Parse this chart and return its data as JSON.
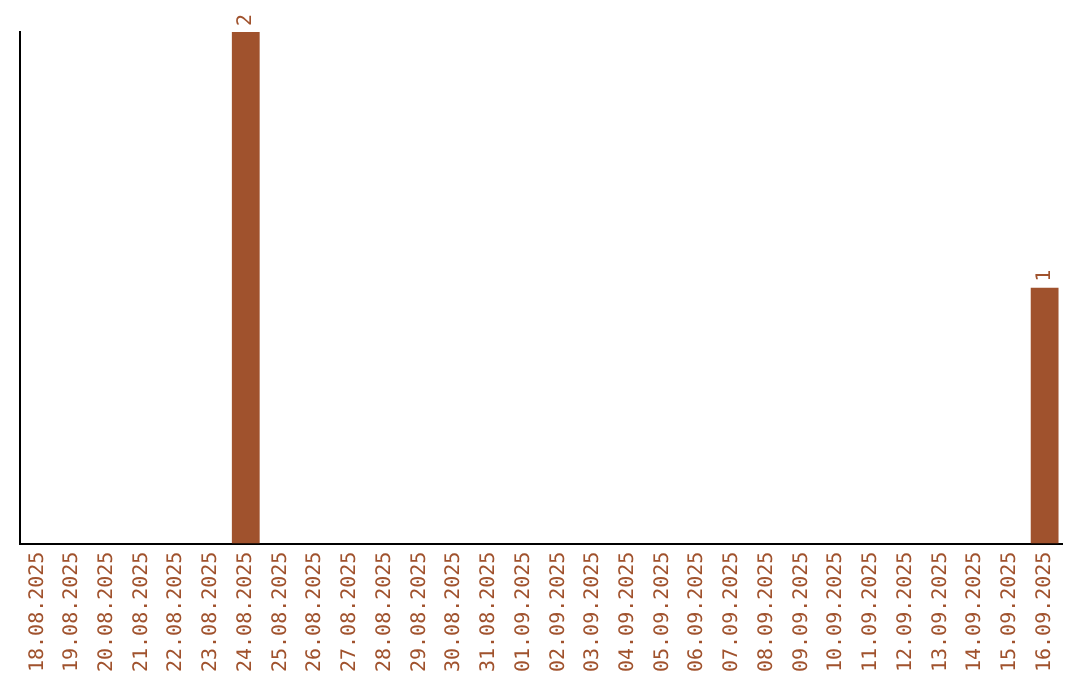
{
  "chart_data": {
    "type": "bar",
    "categories": [
      "18.08.2025",
      "19.08.2025",
      "20.08.2025",
      "21.08.2025",
      "22.08.2025",
      "23.08.2025",
      "24.08.2025",
      "25.08.2025",
      "26.08.2025",
      "27.08.2025",
      "28.08.2025",
      "29.08.2025",
      "30.08.2025",
      "31.08.2025",
      "01.09.2025",
      "02.09.2025",
      "03.09.2025",
      "04.09.2025",
      "05.09.2025",
      "06.09.2025",
      "07.09.2025",
      "08.09.2025",
      "09.09.2025",
      "10.09.2025",
      "11.09.2025",
      "12.09.2025",
      "13.09.2025",
      "14.09.2025",
      "15.09.2025",
      "16.09.2025"
    ],
    "values": [
      0,
      0,
      0,
      0,
      0,
      0,
      2,
      0,
      0,
      0,
      0,
      0,
      0,
      0,
      0,
      0,
      0,
      0,
      0,
      0,
      0,
      0,
      0,
      0,
      0,
      0,
      0,
      0,
      0,
      1
    ],
    "value_labels": [
      null,
      null,
      null,
      null,
      null,
      null,
      "2",
      null,
      null,
      null,
      null,
      null,
      null,
      null,
      null,
      null,
      null,
      null,
      null,
      null,
      null,
      null,
      null,
      null,
      null,
      null,
      null,
      null,
      null,
      "1"
    ],
    "color": "#a0522d",
    "ylim": [
      0,
      2
    ],
    "grid": false,
    "legend": false,
    "tick_labels": "x"
  }
}
